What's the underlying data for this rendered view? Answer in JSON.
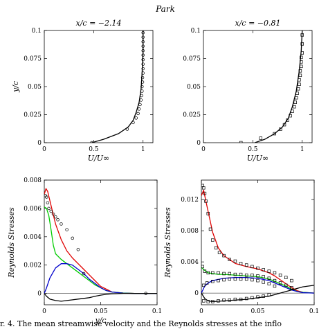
{
  "figure": {
    "title": "Park",
    "caption": "r. 4. The mean streamwise velocity and the Reynolds stresses at the inflo"
  },
  "chart_data": [
    {
      "id": "tl",
      "type": "line",
      "title": "x/c = −2.14",
      "xlabel": "U/U∞",
      "ylabel": "y/c",
      "xlim": [
        0,
        1.1
      ],
      "ylim": [
        0,
        0.1
      ],
      "xticks": [
        0,
        0.5,
        1
      ],
      "xtick_labels": [
        "0",
        "0.5",
        "1"
      ],
      "yticks": [
        0,
        0.025,
        0.05,
        0.075,
        0.1
      ],
      "ytick_labels": [
        "0",
        "0.025",
        "0.05",
        "0.075",
        "0.1"
      ],
      "series": [
        {
          "kind": "line",
          "color": "#000000",
          "x": [
            0.48,
            0.6,
            0.75,
            0.85,
            0.9,
            0.93,
            0.96,
            0.98,
            0.99,
            1.0,
            1.0
          ],
          "y": [
            0,
            0.003,
            0.008,
            0.014,
            0.02,
            0.027,
            0.036,
            0.048,
            0.062,
            0.08,
            0.1
          ]
        },
        {
          "kind": "marker",
          "marker": "circle",
          "color": "#000000",
          "x": [
            0.48,
            0.84,
            0.9,
            0.93,
            0.95,
            0.96,
            0.97,
            0.98,
            0.985,
            0.99,
            0.99,
            0.995,
            0.995,
            1.0,
            1.0,
            1.0,
            1.0,
            1.0,
            1.0,
            1.0,
            1.0,
            1.0,
            1.0
          ],
          "y": [
            0.0,
            0.012,
            0.018,
            0.022,
            0.026,
            0.03,
            0.034,
            0.038,
            0.042,
            0.046,
            0.05,
            0.054,
            0.058,
            0.062,
            0.066,
            0.07,
            0.074,
            0.078,
            0.082,
            0.086,
            0.09,
            0.094,
            0.098
          ]
        }
      ]
    },
    {
      "id": "tr",
      "type": "line",
      "title": "x/c = −0.81",
      "xlabel": "U/U∞",
      "ylabel": "",
      "xlim": [
        0,
        1.1
      ],
      "ylim": [
        0,
        0.1
      ],
      "xticks": [
        0,
        0.5,
        1
      ],
      "xtick_labels": [
        "0",
        "0.5",
        "1"
      ],
      "yticks": [
        0,
        0.025,
        0.05,
        0.075,
        0.1
      ],
      "ytick_labels": [
        "0",
        "0.025",
        "0.05",
        "0.075",
        "0.1"
      ],
      "series": [
        {
          "kind": "line",
          "color": "#000000",
          "x": [
            0.52,
            0.62,
            0.72,
            0.8,
            0.86,
            0.9,
            0.94,
            0.97,
            0.99,
            1.0
          ],
          "y": [
            0,
            0.003,
            0.008,
            0.014,
            0.022,
            0.032,
            0.046,
            0.064,
            0.082,
            0.1
          ]
        },
        {
          "kind": "marker",
          "marker": "square",
          "color": "#000000",
          "x": [
            0.38,
            0.58,
            0.72,
            0.78,
            0.82,
            0.85,
            0.88,
            0.9,
            0.92,
            0.93,
            0.94,
            0.95,
            0.96,
            0.97,
            0.97,
            0.98,
            0.98,
            0.99,
            0.99,
            0.99,
            1.0,
            1.0,
            1.0
          ],
          "y": [
            0.0,
            0.004,
            0.008,
            0.012,
            0.016,
            0.02,
            0.024,
            0.028,
            0.032,
            0.036,
            0.04,
            0.044,
            0.048,
            0.052,
            0.056,
            0.06,
            0.064,
            0.068,
            0.072,
            0.076,
            0.08,
            0.088,
            0.096
          ]
        }
      ]
    },
    {
      "id": "bl",
      "type": "line",
      "title": "",
      "xlabel": "y/c",
      "ylabel": "Reynolds Stresses",
      "xlim": [
        0,
        0.1
      ],
      "ylim": [
        -0.0008,
        0.008
      ],
      "xticks": [
        0,
        0.05,
        0.1
      ],
      "xtick_labels": [
        "0",
        "0.05",
        "0.1"
      ],
      "yticks": [
        0,
        0.002,
        0.004,
        0.006,
        0.008
      ],
      "ytick_labels": [
        "0",
        "0.002",
        "0.004",
        "0.006",
        "0.008"
      ],
      "series": [
        {
          "kind": "line",
          "color": "#e00000",
          "x": [
            0,
            0.0015,
            0.003,
            0.006,
            0.01,
            0.015,
            0.02,
            0.025,
            0.03,
            0.035,
            0.04,
            0.045,
            0.05,
            0.055,
            0.06,
            0.07,
            0.08,
            0.1
          ],
          "y": [
            0.007,
            0.0074,
            0.0072,
            0.0062,
            0.0049,
            0.0038,
            0.003,
            0.0025,
            0.0021,
            0.0017,
            0.0013,
            0.0009,
            0.0005,
            0.0003,
            0.0001,
            3e-05,
            0.0,
            0.0
          ]
        },
        {
          "kind": "line",
          "color": "#00cc00",
          "x": [
            0,
            0.002,
            0.004,
            0.006,
            0.008,
            0.01,
            0.015,
            0.02,
            0.025,
            0.03,
            0.035,
            0.04,
            0.045,
            0.05,
            0.055,
            0.06,
            0.07,
            0.08,
            0.1
          ],
          "y": [
            0.0061,
            0.006,
            0.0055,
            0.0045,
            0.0034,
            0.0028,
            0.0024,
            0.0021,
            0.0018,
            0.0015,
            0.0012,
            0.0009,
            0.0006,
            0.0004,
            0.0002,
            0.0001,
            3e-05,
            0.0,
            0.0
          ]
        },
        {
          "kind": "line",
          "color": "#0000cc",
          "x": [
            0,
            0.002,
            0.005,
            0.01,
            0.015,
            0.02,
            0.025,
            0.03,
            0.035,
            0.04,
            0.045,
            0.05,
            0.055,
            0.06,
            0.07,
            0.08,
            0.1
          ],
          "y": [
            0.0,
            0.0004,
            0.0011,
            0.0018,
            0.0021,
            0.0021,
            0.002,
            0.0017,
            0.0014,
            0.001,
            0.0007,
            0.0004,
            0.0002,
            0.0001,
            2e-05,
            0.0,
            0.0
          ]
        },
        {
          "kind": "line",
          "color": "#000000",
          "x": [
            0,
            0.002,
            0.005,
            0.01,
            0.015,
            0.02,
            0.025,
            0.03,
            0.035,
            0.04,
            0.045,
            0.05,
            0.055,
            0.06,
            0.07,
            0.08,
            0.1
          ],
          "y": [
            0.0,
            -0.0002,
            -0.0004,
            -0.0005,
            -0.00055,
            -0.0005,
            -0.00045,
            -0.0004,
            -0.00035,
            -0.0003,
            -0.0002,
            -0.00012,
            -6e-05,
            -3e-05,
            0.0,
            0.0,
            0.0
          ]
        },
        {
          "kind": "marker",
          "marker": "circle",
          "color": "#000000",
          "x": [
            0.001,
            0.002,
            0.003,
            0.004,
            0.006,
            0.008,
            0.01,
            0.012,
            0.015,
            0.02,
            0.025,
            0.03,
            0.035,
            0.09
          ],
          "y": [
            0.0069,
            0.0068,
            0.0064,
            0.006,
            0.0058,
            0.0056,
            0.0054,
            0.0052,
            0.0049,
            0.0045,
            0.0039,
            0.0031,
            0.0014,
            0.0
          ]
        }
      ]
    },
    {
      "id": "br",
      "type": "line",
      "title": "",
      "xlabel": "",
      "ylabel": "Reynolds Stresses",
      "xlim": [
        0,
        0.1
      ],
      "ylim": [
        -0.0015,
        0.0145
      ],
      "xticks": [
        0,
        0.05,
        0.1
      ],
      "xtick_labels": [
        "0",
        "0.05",
        "0.1"
      ],
      "yticks": [
        0,
        0.004,
        0.008,
        0.012
      ],
      "ytick_labels": [
        "0",
        "0.004",
        "0.008",
        "0.012"
      ],
      "series": [
        {
          "kind": "line",
          "color": "#e00000",
          "x": [
            0,
            0.002,
            0.004,
            0.007,
            0.01,
            0.015,
            0.02,
            0.03,
            0.04,
            0.05,
            0.06,
            0.065,
            0.07,
            0.075,
            0.08,
            0.085,
            0.09,
            0.1
          ],
          "y": [
            0.0125,
            0.0132,
            0.0118,
            0.0098,
            0.0078,
            0.0058,
            0.0048,
            0.0038,
            0.0034,
            0.0031,
            0.0026,
            0.0022,
            0.0017,
            0.0012,
            0.0007,
            0.0003,
            0.0001,
            0.0
          ]
        },
        {
          "kind": "line",
          "color": "#00cc00",
          "x": [
            0,
            0.003,
            0.006,
            0.01,
            0.015,
            0.02,
            0.03,
            0.04,
            0.05,
            0.06,
            0.065,
            0.07,
            0.075,
            0.08,
            0.085,
            0.09,
            0.1
          ],
          "y": [
            0.0033,
            0.0029,
            0.0026,
            0.0025,
            0.0024,
            0.0024,
            0.0023,
            0.0022,
            0.0021,
            0.0018,
            0.0015,
            0.0012,
            0.0009,
            0.0005,
            0.0002,
            0.0001,
            0.0
          ]
        },
        {
          "kind": "line",
          "color": "#0000cc",
          "x": [
            0,
            0.003,
            0.006,
            0.01,
            0.02,
            0.03,
            0.04,
            0.05,
            0.06,
            0.065,
            0.07,
            0.075,
            0.08,
            0.085,
            0.09,
            0.1
          ],
          "y": [
            0.0,
            0.0009,
            0.0013,
            0.0016,
            0.0019,
            0.002,
            0.002,
            0.0019,
            0.0016,
            0.0013,
            0.001,
            0.0007,
            0.0004,
            0.0002,
            5e-05,
            0.0
          ]
        },
        {
          "kind": "line",
          "color": "#000000",
          "x": [
            0,
            0.003,
            0.006,
            0.01,
            0.02,
            0.03,
            0.04,
            0.05,
            0.06,
            0.065,
            0.07,
            0.075,
            0.08,
            0.085,
            0.09,
            0.1
          ],
          "y": [
            0.0,
            -0.0007,
            -0.001,
            -0.0011,
            -0.001,
            -0.0009,
            -0.0008,
            -0.0006,
            -0.0004,
            -0.0002,
            0.0,
            0.0002,
            0.0004,
            0.0006,
            0.0008,
            0.001
          ]
        },
        {
          "kind": "marker",
          "marker": "square",
          "color": "#000000",
          "x": [
            0.001,
            0.002,
            0.003,
            0.004,
            0.006,
            0.008,
            0.01,
            0.013,
            0.016,
            0.02,
            0.025,
            0.03,
            0.035,
            0.04,
            0.045,
            0.05,
            0.055,
            0.06,
            0.065,
            0.07,
            0.075,
            0.08
          ],
          "y": [
            0.0138,
            0.0135,
            0.0128,
            0.0118,
            0.0102,
            0.0082,
            0.0068,
            0.0058,
            0.0052,
            0.0048,
            0.0043,
            0.0041,
            0.0038,
            0.0036,
            0.0034,
            0.0032,
            0.003,
            0.0028,
            0.0026,
            0.0023,
            0.002,
            0.0016
          ]
        },
        {
          "kind": "marker",
          "marker": "square",
          "color": "#000000",
          "x": [
            0.001,
            0.003,
            0.006,
            0.01,
            0.015,
            0.02,
            0.025,
            0.03,
            0.035,
            0.04,
            0.045,
            0.05,
            0.055,
            0.06,
            0.065,
            0.07,
            0.075,
            0.08
          ],
          "y": [
            0.0034,
            0.0028,
            0.0026,
            0.0026,
            0.0026,
            0.0025,
            0.0025,
            0.0024,
            0.0024,
            0.0023,
            0.0023,
            0.0022,
            0.0021,
            0.0019,
            0.0016,
            0.0013,
            0.001,
            0.0007
          ]
        },
        {
          "kind": "marker",
          "marker": "square",
          "color": "#000000",
          "x": [
            0.002,
            0.005,
            0.01,
            0.015,
            0.02,
            0.025,
            0.03,
            0.035,
            0.04,
            0.045,
            0.05,
            0.055,
            0.06,
            0.065
          ],
          "y": [
            0.001,
            0.0013,
            0.0015,
            0.0016,
            0.0017,
            0.0018,
            0.0018,
            0.0018,
            0.0018,
            0.0017,
            0.0016,
            0.0014,
            0.0012,
            0.0009
          ]
        },
        {
          "kind": "marker",
          "marker": "square",
          "color": "#000000",
          "x": [
            0.002,
            0.006,
            0.01,
            0.015,
            0.02,
            0.025,
            0.03,
            0.035,
            0.04,
            0.045,
            0.05,
            0.055,
            0.06
          ],
          "y": [
            -0.001,
            -0.0011,
            -0.0011,
            -0.001,
            -0.0009,
            -0.0009,
            -0.0008,
            -0.0008,
            -0.0007,
            -0.0006,
            -0.0005,
            -0.0004,
            -0.0002
          ]
        }
      ]
    }
  ]
}
